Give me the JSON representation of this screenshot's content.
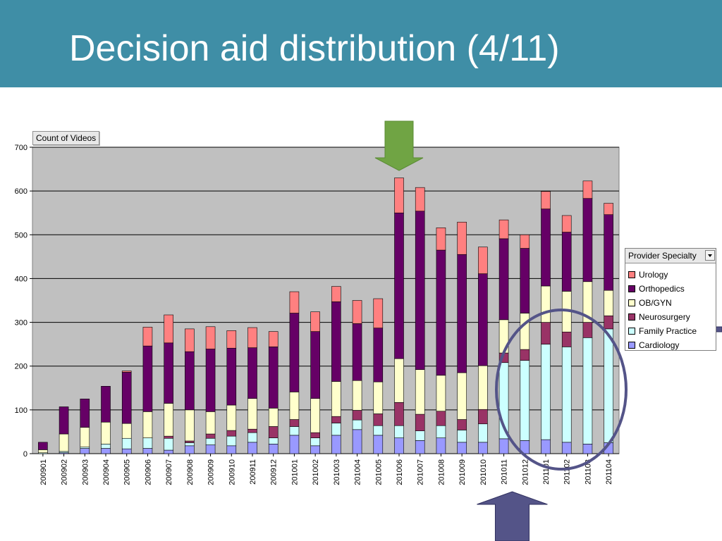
{
  "slide": {
    "title": "Decision aid distribution (4/11)"
  },
  "chart_data": {
    "type": "bar",
    "stacked": true,
    "field_label": "Count of Videos",
    "legend_title": "Provider Specialty",
    "legend_placement": "right",
    "grid": true,
    "ylim": [
      0,
      700
    ],
    "yticks": [
      0,
      100,
      200,
      300,
      400,
      500,
      600,
      700
    ],
    "categories": [
      "200901",
      "200902",
      "200903",
      "200904",
      "200905",
      "200906",
      "200907",
      "200908",
      "200909",
      "200910",
      "200911",
      "200912",
      "201001",
      "201002",
      "201003",
      "201004",
      "201005",
      "201006",
      "201007",
      "201008",
      "201009",
      "201010",
      "201011",
      "201012",
      "201101",
      "201102",
      "201103",
      "201104"
    ],
    "series": [
      {
        "name": "Cardiology",
        "color": "#9999ff",
        "values": [
          0,
          2,
          12,
          12,
          11,
          12,
          8,
          18,
          20,
          18,
          26,
          22,
          42,
          18,
          42,
          55,
          42,
          36,
          30,
          36,
          26,
          26,
          34,
          30,
          32,
          26,
          22,
          25
        ]
      },
      {
        "name": "Family Practice",
        "color": "#ccffff",
        "values": [
          2,
          3,
          3,
          10,
          24,
          24,
          27,
          7,
          15,
          22,
          22,
          14,
          20,
          18,
          28,
          22,
          22,
          28,
          22,
          28,
          28,
          42,
          174,
          183,
          218,
          218,
          243,
          260
        ]
      },
      {
        "name": "Neurosurgery",
        "color": "#993366",
        "values": [
          0,
          0,
          0,
          0,
          0,
          0,
          5,
          4,
          10,
          13,
          8,
          26,
          16,
          12,
          15,
          22,
          27,
          53,
          38,
          33,
          24,
          33,
          22,
          25,
          50,
          34,
          35,
          30
        ]
      },
      {
        "name": "OB/GYN",
        "color": "#ffffcc",
        "values": [
          7,
          40,
          45,
          50,
          34,
          60,
          75,
          71,
          51,
          58,
          70,
          42,
          63,
          78,
          80,
          68,
          73,
          100,
          102,
          82,
          107,
          100,
          76,
          83,
          83,
          93,
          93,
          58
        ]
      },
      {
        "name": "Orthopedics",
        "color": "#660066",
        "values": [
          17,
          62,
          65,
          82,
          117,
          150,
          138,
          133,
          143,
          130,
          116,
          140,
          180,
          153,
          182,
          130,
          123,
          333,
          362,
          286,
          270,
          210,
          185,
          148,
          176,
          135,
          190,
          173
        ]
      },
      {
        "name": "Urology",
        "color": "#ff8080",
        "values": [
          0,
          0,
          0,
          0,
          3,
          43,
          64,
          52,
          51,
          40,
          46,
          35,
          49,
          45,
          35,
          53,
          67,
          80,
          54,
          51,
          74,
          61,
          43,
          31,
          40,
          38,
          40,
          26
        ]
      }
    ],
    "annotations": [
      "green down arrow above 201006",
      "blue up arrow below 201012",
      "blue oval around 201011-201104",
      "blue arrow pointing at Family Practice legend entry"
    ]
  }
}
